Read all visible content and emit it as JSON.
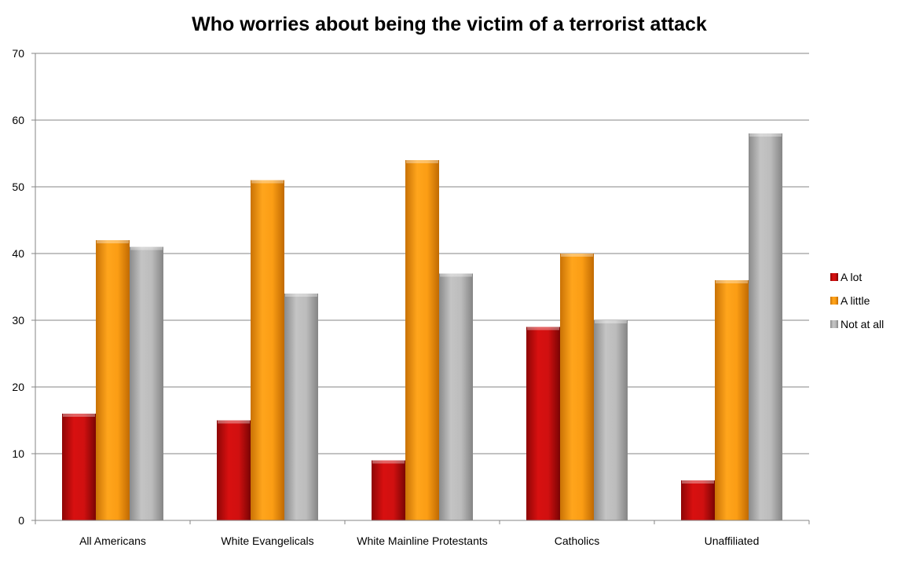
{
  "chart_data": {
    "type": "bar",
    "title": "Who worries about being the victim of a terrorist attack",
    "xlabel": "",
    "ylabel": "",
    "ylim": [
      0,
      70
    ],
    "yticks": [
      0,
      10,
      20,
      30,
      40,
      50,
      60,
      70
    ],
    "grid": true,
    "legend_position": "right",
    "categories": [
      "All Americans",
      "White Evangelicals",
      "White Mainline Protestants",
      "Catholics",
      "Unaffiliated"
    ],
    "series": [
      {
        "name": "A lot",
        "color": "#cc0a0a",
        "values": [
          16,
          15,
          9,
          29,
          6
        ]
      },
      {
        "name": "A little",
        "color": "#f79a10",
        "values": [
          42,
          51,
          54,
          40,
          36
        ]
      },
      {
        "name": "Not at all",
        "color": "#b0b0b0",
        "values": [
          41,
          34,
          37,
          30,
          58
        ]
      }
    ]
  }
}
